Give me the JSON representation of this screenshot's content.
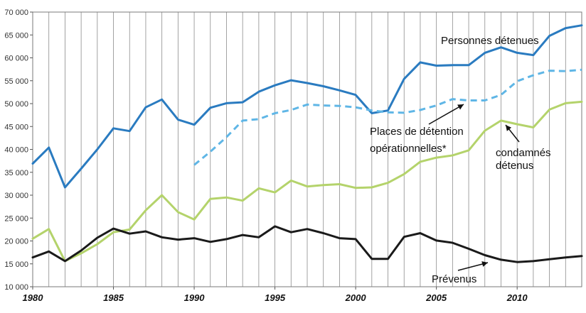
{
  "chart_data": {
    "type": "line",
    "title": "",
    "xlabel": "",
    "ylabel": "",
    "xlim": [
      1980,
      2014
    ],
    "ylim": [
      10000,
      70000
    ],
    "grid": {
      "vertical": true,
      "horizontal": false
    },
    "x_ticks": [
      1980,
      1985,
      1990,
      1995,
      2000,
      2005,
      2010
    ],
    "y_ticks": [
      10000,
      15000,
      20000,
      25000,
      30000,
      35000,
      40000,
      45000,
      50000,
      55000,
      60000,
      65000,
      70000
    ],
    "x_tick_labels": [
      "1980",
      "1985",
      "1990",
      "1995",
      "2000",
      "2005",
      "2010"
    ],
    "y_tick_labels": [
      "10 000",
      "15 000",
      "20 000",
      "25 000",
      "30 000",
      "35 000",
      "40 000",
      "45 000",
      "50 000",
      "55 000",
      "60 000",
      "65 000",
      "70 000"
    ],
    "series": [
      {
        "name": "Personnes détenues",
        "color": "#2a7bc0",
        "dashed": false,
        "x": [
          1980,
          1981,
          1982,
          1983,
          1984,
          1985,
          1986,
          1987,
          1988,
          1989,
          1990,
          1991,
          1992,
          1993,
          1994,
          1995,
          1996,
          1997,
          1998,
          1999,
          2000,
          2001,
          2002,
          2003,
          2004,
          2005,
          2006,
          2007,
          2008,
          2009,
          2010,
          2011,
          2012,
          2013,
          2014
        ],
        "y": [
          36900,
          40400,
          31700,
          35800,
          40000,
          44600,
          44000,
          49200,
          50900,
          46500,
          45400,
          49100,
          50100,
          50300,
          52600,
          54000,
          55100,
          54500,
          53800,
          52900,
          51900,
          47900,
          48500,
          55400,
          59000,
          58300,
          58400,
          58400,
          61100,
          62300,
          61100,
          60600,
          64800,
          66500,
          67100
        ]
      },
      {
        "name": "Places de détention opérationnelles*",
        "color": "#5fb6e6",
        "dashed": true,
        "x": [
          1990,
          1991,
          1992,
          1993,
          1994,
          1995,
          1996,
          1997,
          1998,
          1999,
          2000,
          2001,
          2002,
          2003,
          2004,
          2005,
          2006,
          2007,
          2008,
          2009,
          2010,
          2011,
          2012,
          2013,
          2014
        ],
        "y": [
          36600,
          39500,
          42700,
          46300,
          46600,
          47900,
          48600,
          49800,
          49600,
          49500,
          49200,
          48500,
          48100,
          48000,
          48600,
          49600,
          51000,
          50700,
          50700,
          51900,
          54900,
          56200,
          57200,
          57100,
          57400
        ]
      },
      {
        "name": "condamnés détenus",
        "color": "#b4d36b",
        "dashed": false,
        "x": [
          1980,
          1981,
          1982,
          1983,
          1984,
          1985,
          1986,
          1987,
          1988,
          1989,
          1990,
          1991,
          1992,
          1993,
          1994,
          1995,
          1996,
          1997,
          1998,
          1999,
          2000,
          2001,
          2002,
          2003,
          2004,
          2005,
          2006,
          2007,
          2008,
          2009,
          2010,
          2011,
          2012,
          2013,
          2014
        ],
        "y": [
          20500,
          22600,
          15600,
          17300,
          19300,
          21900,
          22500,
          26700,
          30000,
          26300,
          24700,
          29200,
          29500,
          28800,
          31500,
          30600,
          33200,
          31900,
          32200,
          32400,
          31600,
          31700,
          32700,
          34600,
          37300,
          38200,
          38700,
          39800,
          44100,
          46300,
          45500,
          44800,
          48700,
          50100,
          50400
        ]
      },
      {
        "name": "Prévenus",
        "color": "#1a1a1a",
        "dashed": false,
        "x": [
          1980,
          1981,
          1982,
          1983,
          1984,
          1985,
          1986,
          1987,
          1988,
          1989,
          1990,
          1991,
          1992,
          1993,
          1994,
          1995,
          1996,
          1997,
          1998,
          1999,
          2000,
          2001,
          2002,
          2003,
          2004,
          2005,
          2006,
          2007,
          2008,
          2009,
          2010,
          2011,
          2012,
          2013,
          2014
        ],
        "y": [
          16400,
          17700,
          15600,
          17900,
          20700,
          22700,
          21600,
          22100,
          20800,
          20300,
          20600,
          19800,
          20400,
          21300,
          20800,
          23200,
          21900,
          22600,
          21700,
          20600,
          20400,
          16100,
          16100,
          20900,
          21700,
          20100,
          19600,
          18300,
          16900,
          15900,
          15400,
          15600,
          16000,
          16400,
          16700
        ]
      }
    ],
    "annotations": [
      {
        "lines": [
          "Personnes détenues"
        ],
        "series": "Personnes détenues"
      },
      {
        "lines": [
          "Places de détention",
          "opérationnelles*"
        ],
        "series": "Places de détention opérationnelles*"
      },
      {
        "lines": [
          "condamnés",
          "détenus"
        ],
        "series": "condamnés détenus"
      },
      {
        "lines": [
          "Prévenus"
        ],
        "series": "Prévenus"
      }
    ]
  }
}
